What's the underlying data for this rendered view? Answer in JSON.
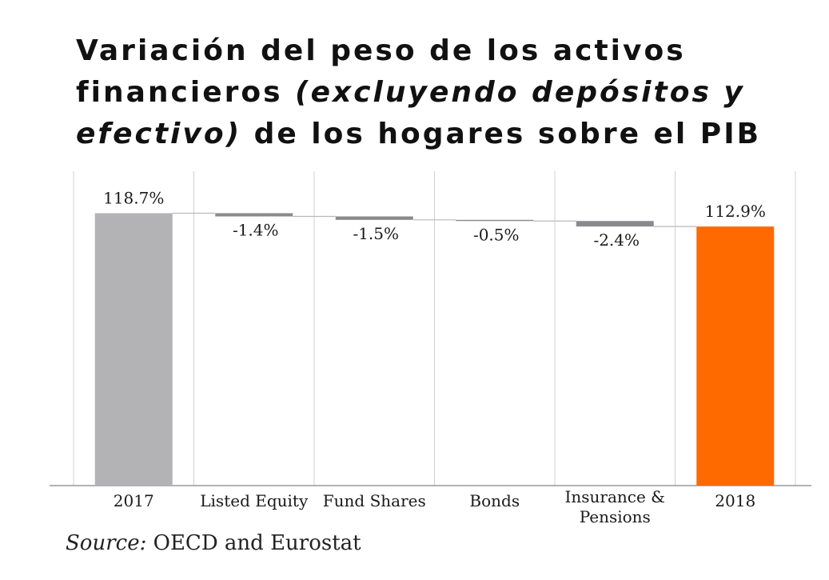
{
  "title": {
    "line1": "Variación del peso de los activos",
    "line2_start": "financieros ",
    "line2_italic": "(excluyendo depósitos y",
    "line3_italic": "efectivo)",
    "line3_end": " de los hogares sobre el PIB"
  },
  "source": {
    "label": "Source:",
    "text": " OECD and Eurostat"
  },
  "chart_data": {
    "type": "waterfall",
    "categories": [
      "2017",
      "Listed Equity",
      "Fund Shares",
      "Bonds",
      "Insurance & Pensions",
      "2018"
    ],
    "tick_labels": [
      [
        "2017"
      ],
      [
        "Listed Equity"
      ],
      [
        "Fund Shares"
      ],
      [
        "Bonds"
      ],
      [
        "Insurance &",
        "Pensions"
      ],
      [
        "2018"
      ]
    ],
    "values": [
      118.7,
      -1.4,
      -1.5,
      -0.5,
      -2.4,
      112.9
    ],
    "data_labels": [
      "118.7%",
      "-1.4%",
      "-1.5%",
      "-0.5%",
      "-2.4%",
      "112.9%"
    ],
    "kinds": [
      "total",
      "delta",
      "delta",
      "delta",
      "delta",
      "total"
    ],
    "colors": {
      "start_total": "#b3b3b5",
      "delta": "#8a898d",
      "end_total": "#ff6a00",
      "gridline": "#d0d0d0",
      "connector": "#b9b9b9",
      "axis": "#999999"
    },
    "grid": true,
    "legend": "none"
  }
}
